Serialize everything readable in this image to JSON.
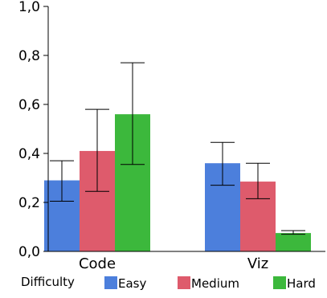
{
  "chart_data": {
    "type": "bar",
    "title": "",
    "xlabel": "",
    "ylabel": "",
    "categories": [
      "Code",
      "Viz"
    ],
    "ylim": [
      0,
      1.0
    ],
    "yticks": [
      "0,0",
      "0,2",
      "0,4",
      "0,6",
      "0,8",
      "1,0"
    ],
    "grid": false,
    "legend_position": "bottom",
    "legend_title": "Difficulty",
    "series": [
      {
        "name": "Easy",
        "color": "#4c7fdc",
        "values": [
          0.29,
          0.36
        ],
        "err_low": [
          0.205,
          0.27
        ],
        "err_high": [
          0.37,
          0.445
        ]
      },
      {
        "name": "Medium",
        "color": "#de5b6c",
        "values": [
          0.41,
          0.285
        ],
        "err_low": [
          0.245,
          0.215
        ],
        "err_high": [
          0.58,
          0.36
        ]
      },
      {
        "name": "Hard",
        "color": "#3cb83c",
        "values": [
          0.56,
          0.075
        ],
        "err_low": [
          0.355,
          0.07
        ],
        "err_high": [
          0.77,
          0.085
        ]
      }
    ]
  }
}
